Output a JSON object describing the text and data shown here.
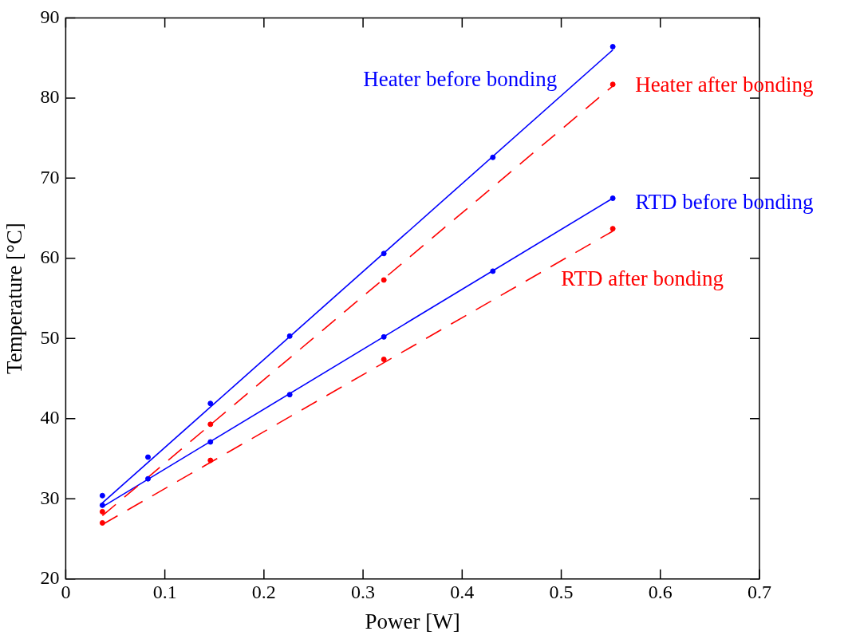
{
  "chart_data": {
    "type": "scatter",
    "xlabel": "Power [W]",
    "ylabel": "Temperature [°C]",
    "xlim": [
      0,
      0.7
    ],
    "xticks": [
      0,
      0.1,
      0.2,
      0.3,
      0.4,
      0.5,
      0.6,
      0.7
    ],
    "ylim": [
      20,
      90
    ],
    "yticks": [
      20,
      30,
      40,
      50,
      60,
      70,
      80,
      90
    ],
    "grid": false,
    "legend": false,
    "marker": "circle",
    "series": [
      {
        "name": "Heater before bonding",
        "color": "#0000ff",
        "x": [
          0.037,
          0.083,
          0.146,
          0.226,
          0.321,
          0.431,
          0.552
        ],
        "values": [
          30.4,
          35.2,
          41.9,
          50.3,
          60.6,
          72.6,
          86.4
        ]
      },
      {
        "name": "Heater after bonding",
        "color": "#ff0000",
        "x": [
          0.037,
          0.146,
          0.321,
          0.552
        ],
        "values": [
          28.4,
          39.3,
          57.3,
          81.7
        ]
      },
      {
        "name": "RTD before bonding",
        "color": "#0000ff",
        "x": [
          0.037,
          0.083,
          0.146,
          0.226,
          0.321,
          0.431,
          0.552
        ],
        "values": [
          29.2,
          32.5,
          37.1,
          43.0,
          50.2,
          58.4,
          67.5
        ]
      },
      {
        "name": "RTD after bonding",
        "color": "#ff0000",
        "x": [
          0.037,
          0.146,
          0.321,
          0.552
        ],
        "values": [
          27.0,
          34.8,
          47.4,
          63.7
        ]
      },
      {
        "type": "line",
        "marker": "none",
        "color": "#0000ff",
        "line_style": "solid",
        "x": [
          0.037,
          0.552
        ],
        "values": [
          29.5,
          86.0
        ]
      },
      {
        "type": "line",
        "marker": "none",
        "color": "#ff0000",
        "line_style": "dashed",
        "x": [
          0.037,
          0.552
        ],
        "values": [
          27.9,
          81.5
        ]
      },
      {
        "type": "line",
        "marker": "none",
        "color": "#0000ff",
        "line_style": "solid",
        "x": [
          0.037,
          0.552
        ],
        "values": [
          29.0,
          67.5
        ]
      },
      {
        "type": "line",
        "marker": "none",
        "color": "#ff0000",
        "line_style": "dashed",
        "x": [
          0.037,
          0.552
        ],
        "values": [
          26.8,
          63.4
        ]
      }
    ]
  }
}
